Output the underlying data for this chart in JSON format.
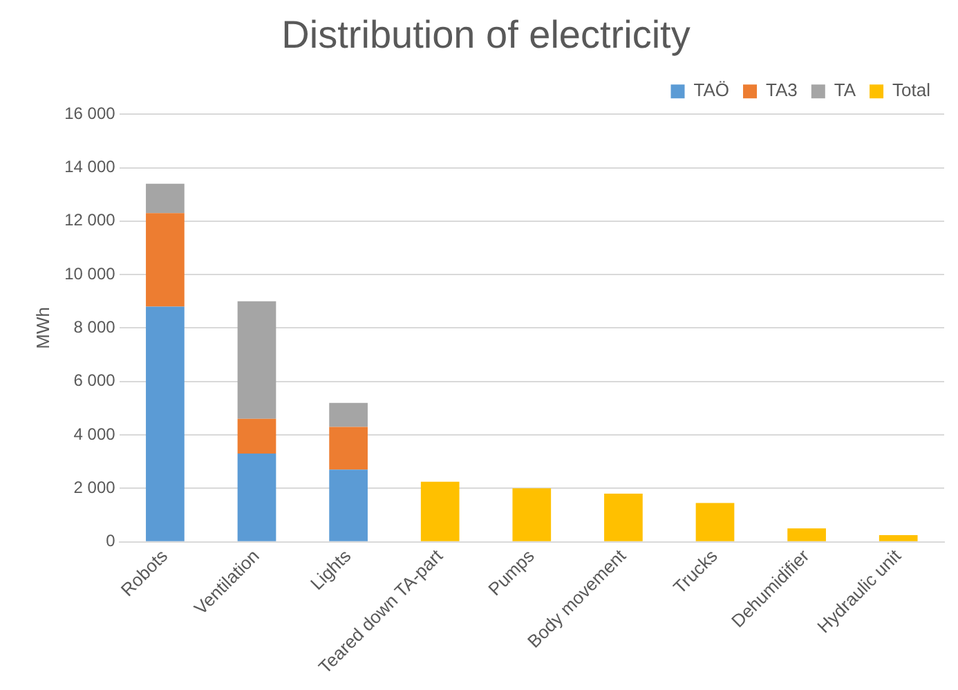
{
  "chart_data": {
    "type": "bar",
    "title": "Distribution of electricity",
    "ylabel": "MWh",
    "categories": [
      "Robots",
      "Ventilation",
      "Lights",
      "Teared down TA-part",
      "Pumps",
      "Body movement",
      "Trucks",
      "Dehumidifier",
      "Hydraulic unit"
    ],
    "series": [
      {
        "name": "TAÖ",
        "color": "#5b9bd5",
        "values": [
          8800,
          3300,
          2700,
          null,
          null,
          null,
          null,
          null,
          null
        ]
      },
      {
        "name": "TA3",
        "color": "#ed7d31",
        "values": [
          3500,
          1300,
          1600,
          null,
          null,
          null,
          null,
          null,
          null
        ]
      },
      {
        "name": "TA",
        "color": "#a5a5a5",
        "values": [
          1100,
          4400,
          900,
          null,
          null,
          null,
          null,
          null,
          null
        ]
      },
      {
        "name": "Total",
        "color": "#ffc000",
        "values": [
          null,
          null,
          null,
          2250,
          2000,
          1800,
          1450,
          500,
          250
        ]
      }
    ],
    "stacked": true,
    "ylim": [
      0,
      16000
    ],
    "yticks": [
      0,
      {
        "value": 2000,
        "label": "2 000"
      },
      {
        "value": 4000,
        "label": "4 000"
      },
      {
        "value": 6000,
        "label": "6 000"
      },
      {
        "value": 8000,
        "label": "8 000"
      },
      {
        "value": 10000,
        "label": "10 000"
      },
      {
        "value": 12000,
        "label": "12 000"
      },
      {
        "value": 14000,
        "label": "14 000"
      },
      {
        "value": 16000,
        "label": "16 000"
      }
    ],
    "grid": "y",
    "legend": "top right"
  }
}
